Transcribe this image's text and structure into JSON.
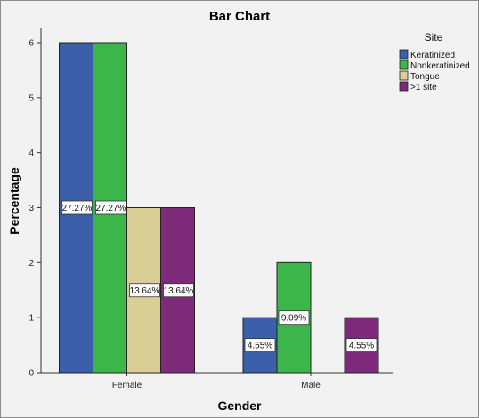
{
  "chart_data": {
    "type": "bar",
    "title": "Bar Chart",
    "xlabel": "Gender",
    "ylabel": "Percentage",
    "categories": [
      "Female",
      "Male"
    ],
    "ylim": [
      0,
      6
    ],
    "yticks": [
      "0",
      "1",
      "2",
      "3",
      "4",
      "5",
      "6"
    ],
    "grid": false,
    "legend_title": "Site",
    "legend_position": "right",
    "series": [
      {
        "name": "Keratinized",
        "color": "#3b5fa8",
        "values": [
          6,
          1
        ],
        "labels": [
          "27.27%",
          "4.55%"
        ]
      },
      {
        "name": "Nonkeratinized",
        "color": "#3cb64a",
        "values": [
          6,
          2
        ],
        "labels": [
          "27.27%",
          "9.09%"
        ]
      },
      {
        "name": "Tongue",
        "color": "#d9cf96",
        "values": [
          3,
          0
        ],
        "labels": [
          "13.64%",
          ""
        ]
      },
      {
        "name": ">1 site",
        "color": "#7e2a7a",
        "values": [
          3,
          1
        ],
        "labels": [
          "13.64%",
          "4.55%"
        ]
      }
    ]
  }
}
